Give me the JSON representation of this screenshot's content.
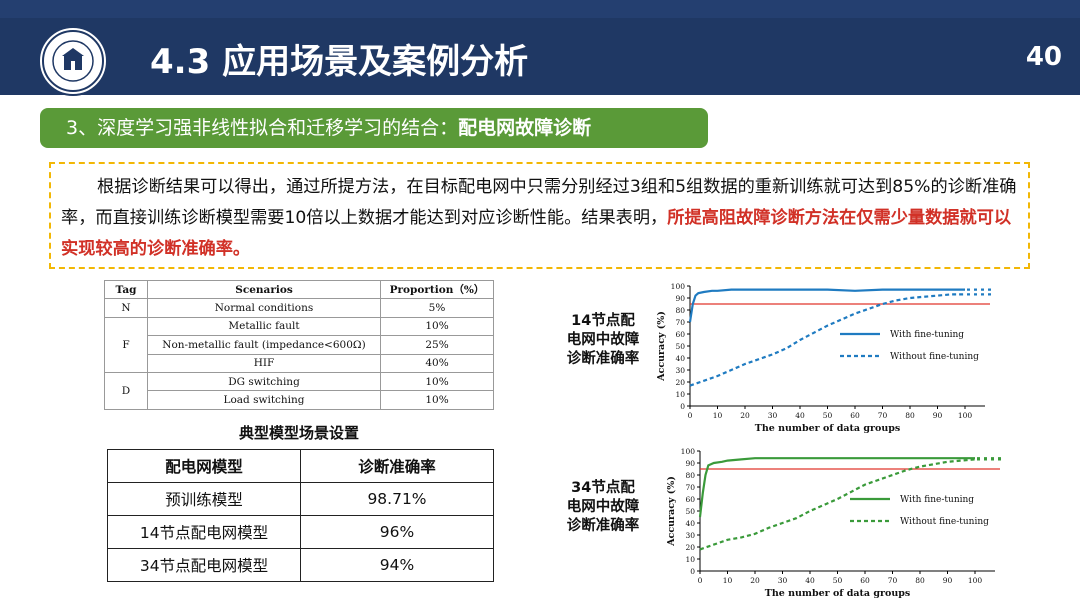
{
  "header": {
    "title": "4.3 应用场景及案例分析",
    "page_number": "40",
    "logo_text": "XI'AN JIAOTONG UNIVERSITY"
  },
  "section": {
    "number_label": "3、深度学习强非线性拟合和迁移学习的结合：",
    "topic_label": "配电网故障诊断"
  },
  "summary": {
    "text_part1": "根据诊断结果可以得出，通过所提方法，在目标配电网中只需分别经过3组和5组数据的重新训练就可达到85%的诊断准确率，而直接训练诊断模型需要10倍以上数据才能达到对应诊断性能。结果表明，",
    "text_highlight": "所提高阻故障诊断方法在仅需少量数据就可以实现较高的诊断准确率。"
  },
  "scenario_table": {
    "headers": [
      "Tag",
      "Scenarios",
      "Proportion（%）"
    ],
    "rows": [
      {
        "tag": "N",
        "scenario": "Normal conditions",
        "proportion": "5%"
      },
      {
        "tag": "F",
        "scenario": "Metallic fault",
        "proportion": "10%"
      },
      {
        "tag": "",
        "scenario": "Non-metallic fault (impedance<600Ω)",
        "proportion": "25%"
      },
      {
        "tag": "",
        "scenario": "HIF",
        "proportion": "40%"
      },
      {
        "tag": "D",
        "scenario": "DG switching",
        "proportion": "10%"
      },
      {
        "tag": "",
        "scenario": "Load switching",
        "proportion": "10%"
      }
    ],
    "caption": "典型模型场景设置"
  },
  "accuracy_table": {
    "headers": [
      "配电网模型",
      "诊断准确率"
    ],
    "rows": [
      {
        "model": "预训练模型",
        "accuracy": "98.71%"
      },
      {
        "model": "14节点配电网模型",
        "accuracy": "96%"
      },
      {
        "model": "34节点配电网模型",
        "accuracy": "94%"
      }
    ]
  },
  "colors": {
    "header_bg": "#1f3864",
    "section_bg": "#5a9a38",
    "summary_border": "#f2b705",
    "highlight_text": "#d13127",
    "chart1_series": "#1f7bc1",
    "chart2_series": "#3a9a3a",
    "threshold_line": "#e0362c"
  },
  "chart_data": [
    {
      "type": "line",
      "caption": "14节点配电网中故障诊断准确率",
      "xlabel": "The number of data groups",
      "ylabel": "Accuracy (%)",
      "xlim": [
        0,
        100
      ],
      "ylim": [
        0,
        100
      ],
      "xticks": [
        0,
        10,
        20,
        30,
        40,
        50,
        60,
        70,
        80,
        90,
        100
      ],
      "yticks": [
        0,
        10,
        20,
        30,
        40,
        50,
        60,
        70,
        80,
        90,
        100
      ],
      "threshold": 85,
      "legend": "center-right",
      "series": [
        {
          "name": "With fine-tuning",
          "style": "solid",
          "x": [
            0,
            1,
            2,
            3,
            5,
            8,
            10,
            15,
            20,
            30,
            40,
            50,
            60,
            70,
            80,
            90,
            100
          ],
          "y": [
            70,
            85,
            92,
            94,
            95,
            96,
            96,
            97,
            97,
            97,
            97,
            97,
            96,
            97,
            97,
            97,
            97
          ]
        },
        {
          "name": "Without fine-tuning",
          "style": "dashed",
          "x": [
            0,
            5,
            10,
            15,
            20,
            25,
            30,
            35,
            40,
            45,
            50,
            55,
            60,
            65,
            70,
            75,
            80,
            85,
            90,
            95,
            100
          ],
          "y": [
            17,
            21,
            25,
            30,
            35,
            39,
            43,
            48,
            55,
            61,
            67,
            72,
            77,
            81,
            85,
            88,
            90,
            91,
            92,
            93,
            93
          ]
        }
      ]
    },
    {
      "type": "line",
      "caption": "34节点配电网中故障诊断准确率",
      "xlabel": "The number of data groups",
      "ylabel": "Accuracy (%)",
      "xlim": [
        0,
        100
      ],
      "ylim": [
        0,
        100
      ],
      "xticks": [
        0,
        10,
        20,
        30,
        40,
        50,
        60,
        70,
        80,
        90,
        100
      ],
      "yticks": [
        0,
        10,
        20,
        30,
        40,
        50,
        60,
        70,
        80,
        90,
        100
      ],
      "threshold": 85,
      "legend": "center-right",
      "series": [
        {
          "name": "With fine-tuning",
          "style": "solid",
          "x": [
            0,
            1,
            2,
            3,
            5,
            8,
            10,
            15,
            20,
            30,
            40,
            50,
            60,
            70,
            80,
            90,
            100
          ],
          "y": [
            45,
            65,
            80,
            88,
            90,
            91,
            92,
            93,
            94,
            94,
            94,
            94,
            94,
            94,
            94,
            94,
            94
          ]
        },
        {
          "name": "Without fine-tuning",
          "style": "dashed",
          "x": [
            0,
            5,
            10,
            15,
            20,
            25,
            30,
            35,
            40,
            45,
            50,
            55,
            60,
            65,
            70,
            75,
            80,
            85,
            90,
            95,
            100
          ],
          "y": [
            18,
            22,
            26,
            28,
            31,
            36,
            40,
            44,
            50,
            55,
            60,
            66,
            72,
            76,
            80,
            84,
            87,
            89,
            91,
            92,
            93
          ]
        }
      ]
    }
  ]
}
